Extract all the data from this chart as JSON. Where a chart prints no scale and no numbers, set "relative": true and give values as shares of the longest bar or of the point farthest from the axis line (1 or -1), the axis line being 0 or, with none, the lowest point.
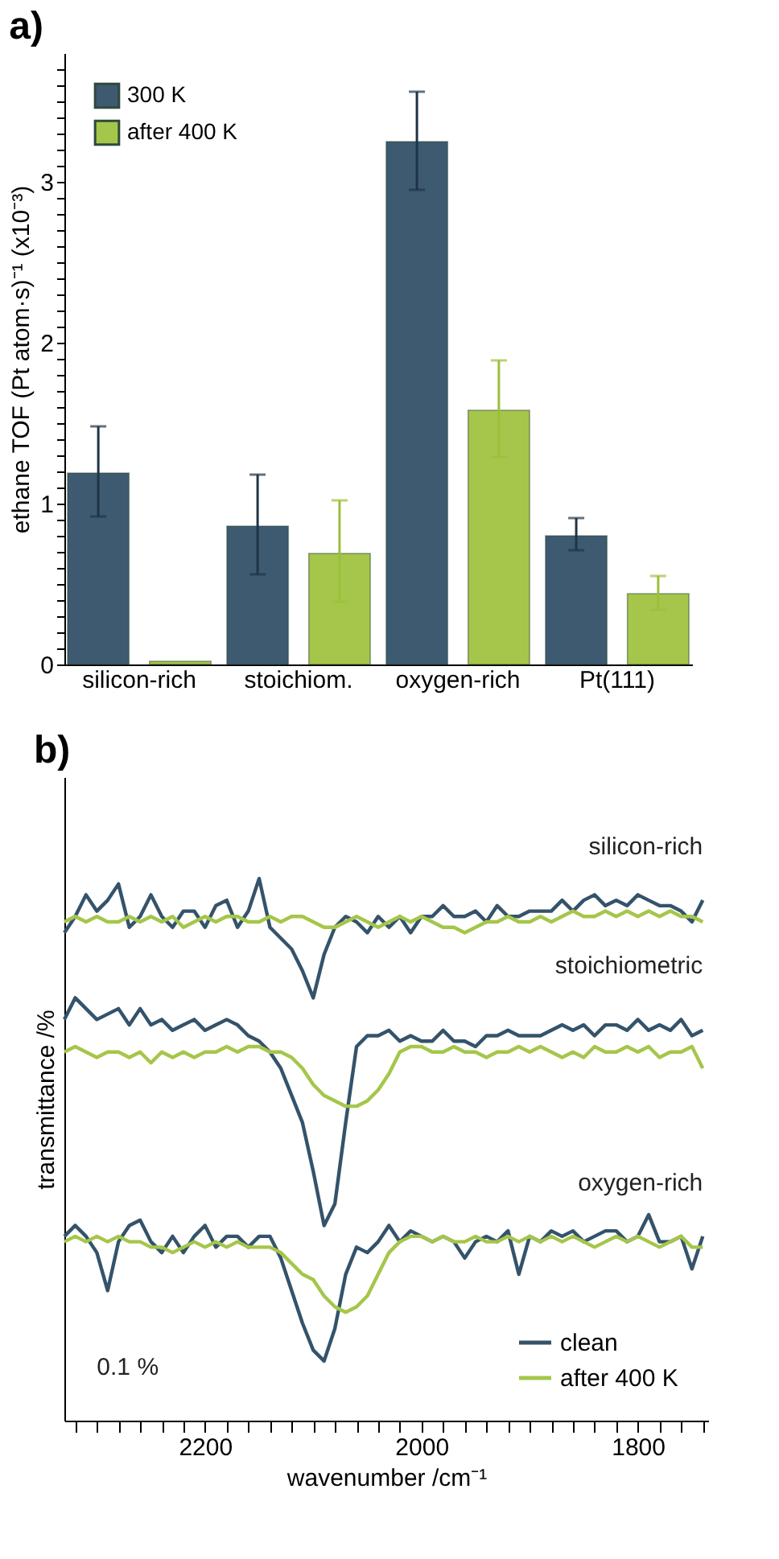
{
  "chart_data": [
    {
      "type": "bar",
      "title": "a)",
      "ylabel": "ethane TOF (Pt atom·s)⁻¹ (x10⁻³)",
      "categories": [
        "silicon-rich",
        "stoichiom.",
        "oxygen-rich",
        "Pt(111)"
      ],
      "series": [
        {
          "name": "300 K",
          "color": "#3d5a71",
          "values": [
            1.19,
            0.86,
            3.25,
            0.8
          ],
          "errors": [
            [
              0.92,
              1.48
            ],
            [
              0.56,
              1.18
            ],
            [
              2.95,
              3.56
            ],
            [
              0.71,
              0.91
            ]
          ]
        },
        {
          "name": "after 400 K",
          "color": "#a5c64a",
          "values": [
            0.02,
            0.69,
            1.58,
            0.44
          ],
          "errors": [
            null,
            [
              0.39,
              1.02
            ],
            [
              1.29,
              1.89
            ],
            [
              0.34,
              0.55
            ]
          ]
        }
      ],
      "ylim": [
        0,
        3.8
      ],
      "yticks": [
        0,
        {
          "value": 0.1,
          "label": null
        },
        {
          "value": 0.2,
          "label": null
        },
        {
          "value": 0.3,
          "label": null
        },
        {
          "value": 0.4,
          "label": null
        },
        {
          "value": 0.5,
          "label": null
        },
        {
          "value": 0.6,
          "label": null
        },
        {
          "value": 0.7,
          "label": null
        },
        {
          "value": 0.8,
          "label": null
        },
        {
          "value": 0.9,
          "label": null
        },
        1,
        {
          "value": 1.1,
          "label": null
        },
        {
          "value": 1.2,
          "label": null
        },
        {
          "value": 1.3,
          "label": null
        },
        {
          "value": 1.4,
          "label": null
        },
        {
          "value": 1.5,
          "label": null
        },
        {
          "value": 1.6,
          "label": null
        },
        {
          "value": 1.7,
          "label": null
        },
        {
          "value": 1.8,
          "label": null
        },
        {
          "value": 1.9,
          "label": null
        },
        2,
        {
          "value": 2.1,
          "label": null
        },
        {
          "value": 2.2,
          "label": null
        },
        {
          "value": 2.3,
          "label": null
        },
        {
          "value": 2.4,
          "label": null
        },
        {
          "value": 2.5,
          "label": null
        },
        {
          "value": 2.6,
          "label": null
        },
        {
          "value": 2.7,
          "label": null
        },
        {
          "value": 2.8,
          "label": null
        },
        {
          "value": 2.9,
          "label": null
        },
        3,
        {
          "value": 3.1,
          "label": null
        },
        {
          "value": 3.2,
          "label": null
        },
        {
          "value": 3.3,
          "label": null
        },
        {
          "value": 3.4,
          "label": null
        },
        {
          "value": 3.5,
          "label": null
        },
        {
          "value": 3.6,
          "label": null
        },
        {
          "value": 3.7,
          "label": null
        }
      ],
      "grid": false,
      "legend": "top left"
    },
    {
      "type": "line",
      "title": "b)",
      "xlabel": "wavenumber /cm⁻¹",
      "ylabel": "transmittance /%",
      "relative": true,
      "tick_labels": "x",
      "marker": "none",
      "line_style": "solid",
      "grid": false,
      "legend": "bottom right",
      "x": [
        2330,
        2320,
        2310,
        2300,
        2290,
        2280,
        2270,
        2260,
        2250,
        2240,
        2230,
        2220,
        2210,
        2200,
        2190,
        2180,
        2170,
        2160,
        2150,
        2140,
        2130,
        2120,
        2110,
        2100,
        2090,
        2080,
        2070,
        2060,
        2050,
        2040,
        2030,
        2020,
        2010,
        2000,
        1990,
        1980,
        1970,
        1960,
        1950,
        1940,
        1930,
        1920,
        1910,
        1900,
        1890,
        1880,
        1870,
        1860,
        1850,
        1840,
        1830,
        1820,
        1810,
        1800,
        1790,
        1780,
        1770,
        1760,
        1750,
        1740
      ],
      "series": [
        {
          "name": "clean",
          "color": "#34536b",
          "values": [
            0.9,
            0.93,
            0.97,
            0.94,
            0.96,
            0.99,
            0.91,
            0.93,
            0.97,
            0.93,
            0.91,
            0.94,
            0.94,
            0.91,
            0.95,
            0.96,
            0.91,
            0.94,
            1.0,
            0.91,
            0.89,
            0.87,
            0.83,
            0.78,
            0.86,
            0.91,
            0.93,
            0.92,
            0.9,
            0.93,
            0.91,
            0.93,
            0.9,
            0.93,
            0.93,
            0.95,
            0.93,
            0.93,
            0.94,
            0.92,
            0.95,
            0.93,
            0.93,
            0.94,
            0.94,
            0.94,
            0.96,
            0.94,
            0.96,
            0.97,
            0.95,
            0.96,
            0.95,
            0.97,
            0.96,
            0.95,
            0.95,
            0.94,
            0.92,
            0.96
          ]
        },
        {
          "name": "after 400 K",
          "color": "#a5c64a",
          "values": [
            0.92,
            0.93,
            0.92,
            0.93,
            0.92,
            0.92,
            0.93,
            0.92,
            0.93,
            0.92,
            0.93,
            0.91,
            0.92,
            0.93,
            0.92,
            0.93,
            0.93,
            0.92,
            0.92,
            0.93,
            0.92,
            0.93,
            0.93,
            0.92,
            0.91,
            0.91,
            0.92,
            0.93,
            0.92,
            0.91,
            0.92,
            0.93,
            0.92,
            0.93,
            0.92,
            0.91,
            0.91,
            0.9,
            0.91,
            0.92,
            0.92,
            0.93,
            0.92,
            0.92,
            0.93,
            0.92,
            0.93,
            0.94,
            0.93,
            0.93,
            0.94,
            0.93,
            0.94,
            0.93,
            0.94,
            0.93,
            0.94,
            0.93,
            0.93,
            0.92
          ]
        },
        {
          "color": "#34536b",
          "values": [
            0.74,
            0.78,
            0.76,
            0.74,
            0.75,
            0.76,
            0.73,
            0.76,
            0.73,
            0.74,
            0.72,
            0.73,
            0.74,
            0.72,
            0.73,
            0.74,
            0.73,
            0.71,
            0.7,
            0.68,
            0.65,
            0.6,
            0.55,
            0.46,
            0.36,
            0.4,
            0.55,
            0.69,
            0.71,
            0.71,
            0.72,
            0.7,
            0.71,
            0.7,
            0.7,
            0.72,
            0.7,
            0.7,
            0.69,
            0.71,
            0.71,
            0.72,
            0.71,
            0.71,
            0.71,
            0.72,
            0.73,
            0.72,
            0.73,
            0.71,
            0.73,
            0.73,
            0.72,
            0.74,
            0.72,
            0.73,
            0.72,
            0.74,
            0.71,
            0.72
          ]
        },
        {
          "color": "#a5c64a",
          "values": [
            0.68,
            0.69,
            0.68,
            0.67,
            0.68,
            0.68,
            0.67,
            0.68,
            0.66,
            0.68,
            0.67,
            0.68,
            0.67,
            0.68,
            0.68,
            0.69,
            0.68,
            0.69,
            0.69,
            0.68,
            0.68,
            0.67,
            0.65,
            0.62,
            0.6,
            0.59,
            0.58,
            0.58,
            0.59,
            0.61,
            0.64,
            0.68,
            0.69,
            0.69,
            0.68,
            0.68,
            0.69,
            0.68,
            0.68,
            0.67,
            0.68,
            0.68,
            0.69,
            0.68,
            0.69,
            0.68,
            0.67,
            0.68,
            0.67,
            0.69,
            0.68,
            0.68,
            0.69,
            0.68,
            0.69,
            0.67,
            0.68,
            0.68,
            0.69,
            0.65
          ]
        },
        {
          "color": "#34536b",
          "values": [
            0.34,
            0.36,
            0.34,
            0.31,
            0.24,
            0.33,
            0.36,
            0.37,
            0.33,
            0.31,
            0.34,
            0.31,
            0.34,
            0.36,
            0.32,
            0.34,
            0.34,
            0.32,
            0.34,
            0.34,
            0.3,
            0.24,
            0.18,
            0.13,
            0.11,
            0.17,
            0.27,
            0.32,
            0.31,
            0.33,
            0.36,
            0.33,
            0.35,
            0.34,
            0.33,
            0.34,
            0.33,
            0.3,
            0.33,
            0.34,
            0.33,
            0.35,
            0.27,
            0.34,
            0.33,
            0.35,
            0.34,
            0.35,
            0.33,
            0.34,
            0.35,
            0.35,
            0.33,
            0.34,
            0.38,
            0.33,
            0.33,
            0.34,
            0.28,
            0.34
          ]
        },
        {
          "color": "#a5c64a",
          "values": [
            0.33,
            0.34,
            0.33,
            0.34,
            0.33,
            0.34,
            0.33,
            0.33,
            0.32,
            0.32,
            0.31,
            0.32,
            0.33,
            0.32,
            0.33,
            0.32,
            0.33,
            0.32,
            0.32,
            0.32,
            0.31,
            0.29,
            0.27,
            0.26,
            0.23,
            0.21,
            0.2,
            0.21,
            0.23,
            0.27,
            0.31,
            0.33,
            0.34,
            0.34,
            0.33,
            0.34,
            0.33,
            0.33,
            0.34,
            0.33,
            0.33,
            0.34,
            0.33,
            0.34,
            0.33,
            0.34,
            0.33,
            0.34,
            0.33,
            0.32,
            0.33,
            0.34,
            0.33,
            0.34,
            0.33,
            0.32,
            0.33,
            0.34,
            0.32,
            0.32
          ]
        }
      ],
      "xlim": [
        2330,
        1735
      ],
      "xticks": [
        {
          "value": 2320,
          "label": null
        },
        {
          "value": 2300,
          "label": null
        },
        {
          "value": 2280,
          "label": null
        },
        {
          "value": 2260,
          "label": null
        },
        {
          "value": 2240,
          "label": null
        },
        {
          "value": 2220,
          "label": null
        },
        2200,
        {
          "value": 2180,
          "label": null
        },
        {
          "value": 2160,
          "label": null
        },
        {
          "value": 2140,
          "label": null
        },
        {
          "value": 2120,
          "label": null
        },
        {
          "value": 2100,
          "label": null
        },
        {
          "value": 2080,
          "label": null
        },
        {
          "value": 2060,
          "label": null
        },
        {
          "value": 2040,
          "label": null
        },
        {
          "value": 2020,
          "label": null
        },
        2000,
        {
          "value": 1980,
          "label": null
        },
        {
          "value": 1960,
          "label": null
        },
        {
          "value": 1940,
          "label": null
        },
        {
          "value": 1920,
          "label": null
        },
        {
          "value": 1900,
          "label": null
        },
        {
          "value": 1880,
          "label": null
        },
        {
          "value": 1860,
          "label": null
        },
        {
          "value": 1840,
          "label": null
        },
        {
          "value": 1820,
          "label": null
        },
        1800,
        {
          "value": 1780,
          "label": null
        },
        {
          "value": 1760,
          "label": null
        },
        {
          "value": 1740,
          "label": null
        }
      ],
      "annotations": [
        "silicon-rich",
        "stoichiometric",
        "oxygen-rich",
        "0.1 %"
      ]
    }
  ]
}
